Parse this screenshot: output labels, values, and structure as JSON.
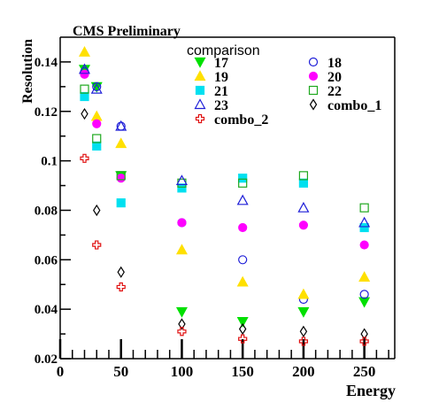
{
  "chart_data": {
    "type": "scatter",
    "title": "CMS Preliminary",
    "xlabel": "Energy",
    "ylabel": "Resolution",
    "xlim": [
      0,
      275
    ],
    "ylim": [
      0.02,
      0.15
    ],
    "x_ticks": [
      "0",
      "50",
      "100",
      "150",
      "200",
      "250"
    ],
    "y_ticks": [
      "0.02",
      "0.04",
      "0.06",
      "0.08",
      "0.1",
      "0.12",
      "0.14"
    ],
    "grid": false,
    "legend": {
      "title": "comparison",
      "placement": "top-right"
    },
    "series": [
      {
        "name": "17",
        "marker": "triangle-down",
        "filled": true,
        "color": "#00e000",
        "points": [
          [
            20,
            0.137
          ],
          [
            30,
            0.13
          ],
          [
            50,
            0.094
          ],
          [
            100,
            0.039
          ],
          [
            150,
            0.035
          ],
          [
            200,
            0.039
          ],
          [
            250,
            0.043
          ]
        ]
      },
      {
        "name": "18",
        "marker": "circle",
        "filled": false,
        "color": "#1f1fd8",
        "points": [
          [
            20,
            0.136
          ],
          [
            30,
            0.13
          ],
          [
            50,
            0.114
          ],
          [
            100,
            0.075
          ],
          [
            150,
            0.06
          ],
          [
            200,
            0.044
          ],
          [
            250,
            0.046
          ]
        ]
      },
      {
        "name": "19",
        "marker": "triangle-up",
        "filled": true,
        "color": "#ffe000",
        "points": [
          [
            20,
            0.144
          ],
          [
            30,
            0.118
          ],
          [
            50,
            0.107
          ],
          [
            100,
            0.064
          ],
          [
            150,
            0.051
          ],
          [
            200,
            0.046
          ],
          [
            250,
            0.053
          ]
        ]
      },
      {
        "name": "20",
        "marker": "circle",
        "filled": true,
        "color": "#ff00ff",
        "points": [
          [
            20,
            0.135
          ],
          [
            30,
            0.115
          ],
          [
            50,
            0.093
          ],
          [
            100,
            0.075
          ],
          [
            150,
            0.073
          ],
          [
            200,
            0.074
          ],
          [
            250,
            0.066
          ]
        ]
      },
      {
        "name": "21",
        "marker": "square",
        "filled": true,
        "color": "#00e0f0",
        "points": [
          [
            20,
            0.126
          ],
          [
            30,
            0.106
          ],
          [
            50,
            0.083
          ],
          [
            100,
            0.089
          ],
          [
            150,
            0.093
          ],
          [
            200,
            0.091
          ],
          [
            250,
            0.073
          ]
        ]
      },
      {
        "name": "22",
        "marker": "square",
        "filled": false,
        "color": "#1fa81f",
        "points": [
          [
            20,
            0.129
          ],
          [
            30,
            0.109
          ],
          [
            50,
            0.094
          ],
          [
            100,
            0.091
          ],
          [
            150,
            0.091
          ],
          [
            200,
            0.094
          ],
          [
            250,
            0.081
          ]
        ]
      },
      {
        "name": "23",
        "marker": "triangle-up",
        "filled": false,
        "color": "#1f1fd8",
        "points": [
          [
            20,
            0.137
          ],
          [
            30,
            0.129
          ],
          [
            50,
            0.114
          ],
          [
            100,
            0.092
          ],
          [
            150,
            0.084
          ],
          [
            200,
            0.081
          ],
          [
            250,
            0.075
          ]
        ]
      },
      {
        "name": "combo_1",
        "marker": "diamond",
        "filled": false,
        "color": "#000000",
        "points": [
          [
            20,
            0.119
          ],
          [
            30,
            0.08
          ],
          [
            50,
            0.055
          ],
          [
            100,
            0.034
          ],
          [
            150,
            0.032
          ],
          [
            200,
            0.031
          ],
          [
            250,
            0.03
          ]
        ]
      },
      {
        "name": "combo_2",
        "marker": "cross",
        "filled": false,
        "color": "#e01010",
        "points": [
          [
            20,
            0.101
          ],
          [
            30,
            0.066
          ],
          [
            50,
            0.049
          ],
          [
            100,
            0.031
          ],
          [
            150,
            0.028
          ],
          [
            200,
            0.027
          ],
          [
            250,
            0.027
          ]
        ]
      }
    ]
  }
}
